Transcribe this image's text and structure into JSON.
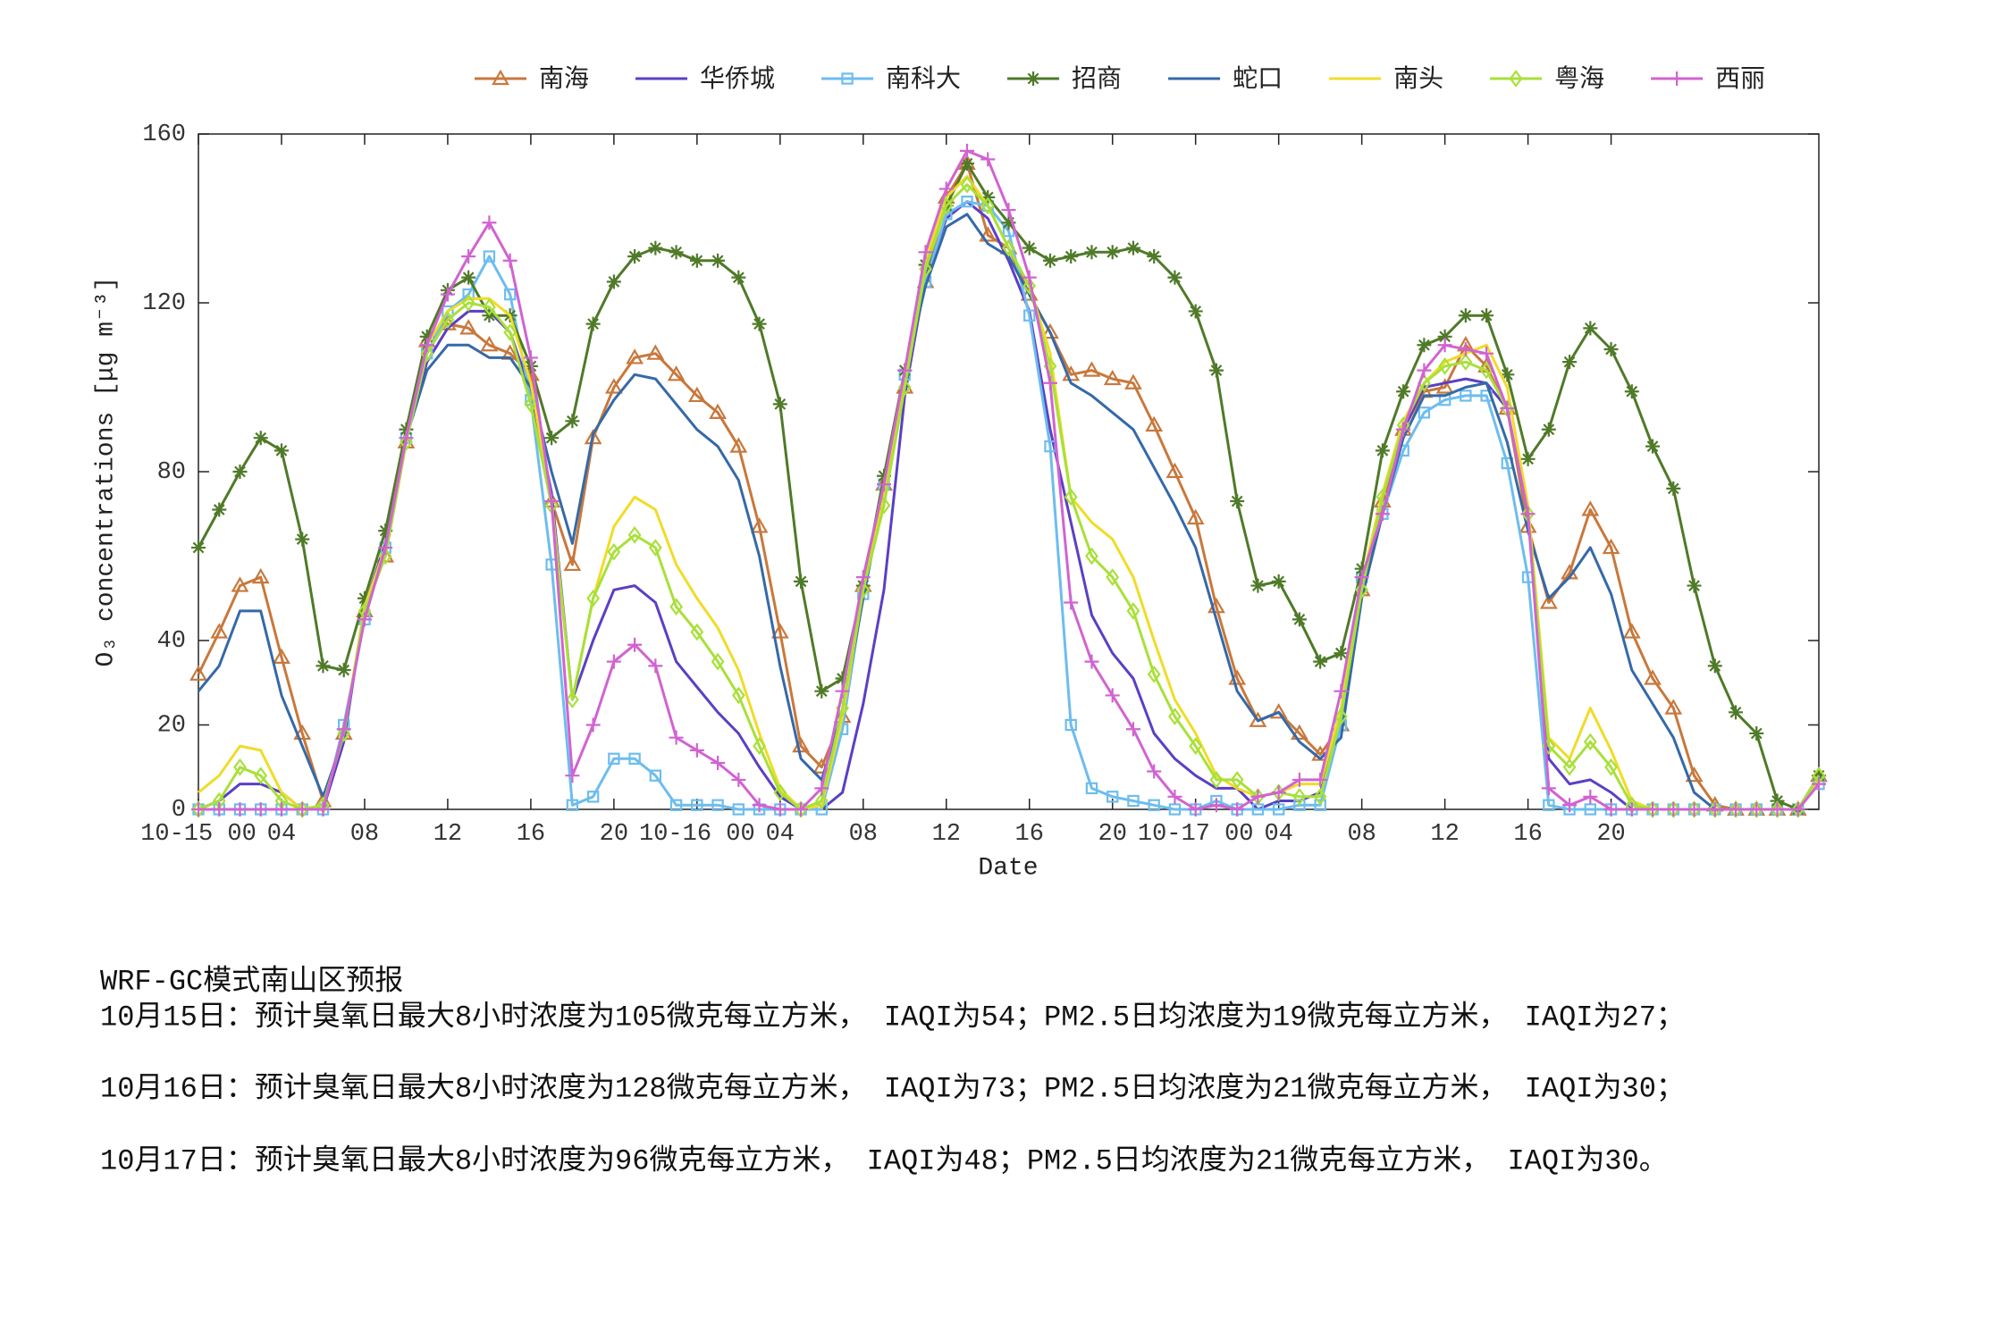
{
  "chart_data": {
    "type": "line",
    "ylabel": "O₃ concentrations [μg m⁻³]",
    "xlabel": "Date",
    "x": [
      0,
      1,
      2,
      3,
      4,
      5,
      6,
      7,
      8,
      9,
      10,
      11,
      12,
      13,
      14,
      15,
      16,
      17,
      18,
      19,
      20,
      21,
      22,
      23,
      24,
      25,
      26,
      27,
      28,
      29,
      30,
      31,
      32,
      33,
      34,
      35,
      36,
      37,
      38,
      39,
      40,
      41,
      42,
      43,
      44,
      45,
      46,
      47,
      48,
      49,
      50,
      51,
      52,
      53,
      54,
      55,
      56,
      57,
      58,
      59,
      60,
      61,
      62,
      63,
      64,
      65,
      66,
      67,
      68,
      69,
      70,
      71,
      72,
      73,
      74,
      75,
      76,
      77,
      78
    ],
    "xlim": [
      0,
      78
    ],
    "xticks": [
      {
        "value": 0,
        "label": "10-15 00"
      },
      {
        "value": 4,
        "label": "04"
      },
      {
        "value": 8,
        "label": "08"
      },
      12,
      16,
      20,
      {
        "value": 24,
        "label": "10-16 00"
      },
      {
        "value": 28,
        "label": "04"
      },
      {
        "value": 32,
        "label": "08"
      },
      {
        "value": 36,
        "label": "12"
      },
      {
        "value": 40,
        "label": "16"
      },
      {
        "value": 44,
        "label": "20"
      },
      {
        "value": 48,
        "label": "10-17 00"
      },
      {
        "value": 52,
        "label": "04"
      },
      {
        "value": 56,
        "label": "08"
      },
      {
        "value": 60,
        "label": "12"
      },
      {
        "value": 64,
        "label": "16"
      },
      {
        "value": 68,
        "label": "20"
      }
    ],
    "ylim": [
      0,
      160
    ],
    "yticks": [
      0,
      20,
      40,
      80,
      120,
      160
    ],
    "grid": false,
    "legend": "top",
    "series": [
      {
        "name": "南海",
        "color": "#c8783c",
        "marker": "triangle",
        "values": [
          32,
          42,
          53,
          55,
          36,
          18,
          2,
          18,
          47,
          60,
          87,
          111,
          115,
          114,
          110,
          108,
          103,
          73,
          58,
          88,
          100,
          107,
          108,
          103,
          98,
          94,
          86,
          67,
          42,
          15,
          10,
          22,
          53,
          77,
          100,
          125,
          145,
          153,
          136,
          133,
          122,
          113,
          103,
          104,
          102,
          101,
          91,
          80,
          69,
          48,
          31,
          21,
          23,
          18,
          13,
          20,
          52,
          73,
          90,
          99,
          100,
          110,
          105,
          95,
          67,
          49,
          56,
          71,
          62,
          42,
          31,
          24,
          8,
          1,
          0,
          0,
          0,
          0,
          8
        ]
      },
      {
        "name": "华侨城",
        "color": "#5b3fc4",
        "marker": "none",
        "values": [
          0,
          2,
          6,
          6,
          4,
          0,
          0,
          16,
          48,
          63,
          88,
          106,
          114,
          118,
          118,
          113,
          99,
          75,
          26,
          40,
          52,
          53,
          49,
          35,
          29,
          23,
          18,
          10,
          3,
          0,
          0,
          4,
          25,
          52,
          98,
          126,
          140,
          144,
          140,
          130,
          118,
          90,
          68,
          46,
          37,
          31,
          18,
          12,
          8,
          5,
          5,
          0,
          2,
          2,
          4,
          22,
          52,
          70,
          90,
          100,
          101,
          102,
          101,
          95,
          70,
          12,
          6,
          7,
          4,
          0,
          0,
          0,
          0,
          0,
          0,
          0,
          0,
          0,
          7
        ]
      },
      {
        "name": "南科大",
        "color": "#6dbdee",
        "marker": "square",
        "values": [
          0,
          0,
          0,
          0,
          0,
          0,
          0,
          20,
          45,
          62,
          88,
          108,
          118,
          122,
          131,
          122,
          97,
          58,
          1,
          3,
          12,
          12,
          8,
          1,
          1,
          1,
          0,
          0,
          0,
          0,
          0,
          19,
          51,
          77,
          103,
          125,
          141,
          144,
          143,
          137,
          117,
          86,
          20,
          5,
          3,
          2,
          1,
          0,
          0,
          2,
          0,
          0,
          0,
          1,
          1,
          20,
          55,
          70,
          85,
          94,
          97,
          98,
          98,
          82,
          55,
          1,
          0,
          0,
          0,
          0,
          0,
          0,
          0,
          0,
          0,
          0,
          0,
          0,
          6
        ]
      },
      {
        "name": "招商",
        "color": "#4f7a28",
        "marker": "asterisk",
        "values": [
          62,
          71,
          80,
          88,
          85,
          64,
          34,
          33,
          50,
          66,
          90,
          112,
          123,
          126,
          117,
          117,
          105,
          88,
          92,
          115,
          125,
          131,
          133,
          132,
          130,
          130,
          126,
          115,
          96,
          54,
          28,
          31,
          53,
          79,
          104,
          129,
          143,
          153,
          145,
          139,
          133,
          130,
          131,
          132,
          132,
          133,
          131,
          126,
          118,
          104,
          73,
          53,
          54,
          45,
          35,
          37,
          57,
          85,
          99,
          110,
          112,
          117,
          117,
          103,
          83,
          90,
          106,
          114,
          109,
          99,
          86,
          76,
          53,
          34,
          23,
          18,
          2,
          0,
          8
        ]
      },
      {
        "name": "蛇口",
        "color": "#3569a8",
        "marker": "none",
        "values": [
          28,
          34,
          47,
          47,
          27,
          15,
          3,
          17,
          48,
          62,
          88,
          104,
          110,
          110,
          107,
          107,
          100,
          80,
          63,
          89,
          97,
          103,
          102,
          96,
          90,
          86,
          78,
          60,
          34,
          12,
          7,
          23,
          50,
          75,
          103,
          124,
          138,
          141,
          134,
          131,
          122,
          113,
          101,
          98,
          94,
          90,
          81,
          72,
          62,
          45,
          28,
          21,
          23,
          16,
          12,
          17,
          50,
          70,
          88,
          98,
          98,
          100,
          101,
          87,
          66,
          50,
          55,
          62,
          51,
          33,
          25,
          17,
          4,
          0,
          0,
          0,
          0,
          0,
          7
        ]
      },
      {
        "name": "南头",
        "color": "#f0dc28",
        "marker": "none",
        "values": [
          4,
          8,
          15,
          14,
          4,
          0,
          1,
          18,
          48,
          62,
          88,
          110,
          118,
          121,
          121,
          117,
          101,
          73,
          26,
          50,
          67,
          74,
          71,
          58,
          50,
          43,
          33,
          18,
          5,
          0,
          1,
          22,
          52,
          74,
          101,
          130,
          145,
          150,
          143,
          133,
          124,
          108,
          74,
          68,
          64,
          55,
          40,
          26,
          18,
          8,
          5,
          3,
          4,
          6,
          6,
          24,
          54,
          75,
          92,
          101,
          106,
          108,
          110,
          100,
          72,
          17,
          12,
          24,
          14,
          2,
          0,
          0,
          0,
          0,
          0,
          0,
          0,
          0,
          7
        ]
      },
      {
        "name": "粤海",
        "color": "#a8e03a",
        "marker": "diamond",
        "values": [
          0,
          2,
          10,
          8,
          2,
          0,
          1,
          18,
          47,
          60,
          87,
          108,
          116,
          120,
          119,
          113,
          96,
          72,
          26,
          50,
          61,
          65,
          62,
          48,
          42,
          35,
          27,
          15,
          4,
          0,
          2,
          24,
          52,
          72,
          100,
          128,
          143,
          148,
          143,
          133,
          124,
          105,
          74,
          60,
          55,
          47,
          32,
          22,
          15,
          7,
          7,
          3,
          4,
          3,
          3,
          22,
          52,
          74,
          91,
          101,
          105,
          106,
          104,
          95,
          70,
          15,
          10,
          16,
          10,
          1,
          0,
          0,
          0,
          0,
          0,
          0,
          0,
          0,
          8
        ]
      },
      {
        "name": "西丽",
        "color": "#d163d1",
        "marker": "plus",
        "values": [
          0,
          0,
          0,
          0,
          0,
          0,
          0,
          19,
          45,
          62,
          88,
          110,
          122,
          131,
          139,
          130,
          107,
          73,
          8,
          20,
          35,
          39,
          34,
          17,
          14,
          11,
          7,
          1,
          0,
          0,
          5,
          28,
          55,
          77,
          104,
          132,
          147,
          156,
          154,
          142,
          126,
          101,
          49,
          35,
          27,
          19,
          9,
          3,
          0,
          1,
          0,
          3,
          4,
          7,
          7,
          28,
          55,
          70,
          90,
          104,
          110,
          109,
          108,
          95,
          70,
          5,
          1,
          3,
          0,
          0,
          0,
          0,
          0,
          0,
          0,
          0,
          0,
          0,
          6
        ]
      }
    ]
  },
  "forecast": {
    "title": "WRF-GC模式南山区预报",
    "lines": [
      "10月15日：预计臭氧日最大8小时浓度为105微克每立方米， IAQI为54；PM2.5日均浓度为19微克每立方米， IAQI为27；",
      "10月16日：预计臭氧日最大8小时浓度为128微克每立方米， IAQI为73；PM2.5日均浓度为21微克每立方米， IAQI为30；",
      "10月17日：预计臭氧日最大8小时浓度为96微克每立方米， IAQI为48；PM2.5日均浓度为21微克每立方米， IAQI为30。"
    ]
  }
}
